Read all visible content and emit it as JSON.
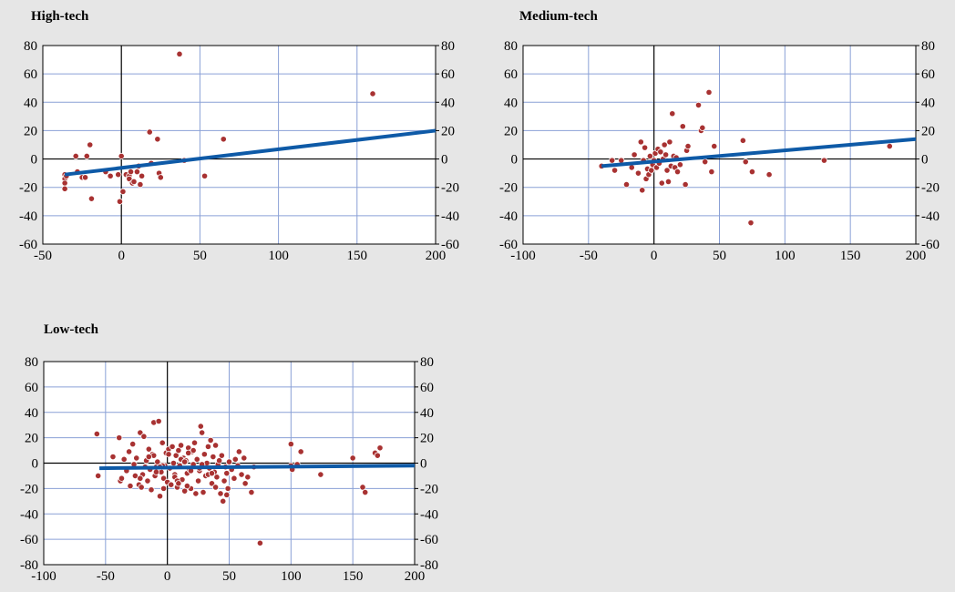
{
  "colors": {
    "background": "#e6e6e6",
    "plot_background": "#ffffff",
    "gridline": "#8aa0d6",
    "axis": "#000000",
    "points": "#a83232",
    "point_edge": "#ffffff",
    "trend": "#0e5aa7"
  },
  "chart_data": [
    {
      "id": "high",
      "type": "scatter",
      "title": "High-tech",
      "xlim": [
        -50,
        200
      ],
      "ylim": [
        -60,
        80
      ],
      "xticks": [
        -50,
        0,
        50,
        100,
        150,
        200
      ],
      "xtick_labels": [
        "-50",
        "0",
        "50",
        "100",
        "150",
        "200"
      ],
      "yticks": [
        -60,
        -40,
        -20,
        0,
        20,
        40,
        60,
        80
      ],
      "ytick_labels": [
        "-60",
        "-40",
        "-20",
        "0",
        "20",
        "40",
        "60",
        "80"
      ],
      "grid": true,
      "trend": {
        "x": [
          -36,
          200
        ],
        "y": [
          -11,
          20
        ]
      },
      "x": [
        -36,
        -36,
        -36,
        -36,
        -35,
        -29,
        -28,
        -25,
        -23,
        -22,
        -20,
        -19,
        -10,
        -7,
        -2,
        -1,
        0,
        1,
        3,
        5,
        5,
        6,
        7,
        8,
        10,
        11,
        12,
        13,
        18,
        19,
        23,
        24,
        25,
        37,
        40,
        53,
        65,
        160
      ],
      "y": [
        -11,
        -14,
        -17,
        -21,
        -12,
        2,
        -9,
        -13,
        -13,
        2,
        10,
        -28,
        -9,
        -12,
        -11,
        -30,
        2,
        -23,
        -11,
        -12,
        -14,
        -9,
        -17,
        -16,
        -9,
        -5,
        -18,
        -12,
        19,
        -3,
        14,
        -10,
        -13,
        74,
        -1,
        -12,
        14,
        46
      ]
    },
    {
      "id": "medium",
      "type": "scatter",
      "title": "Medium-tech",
      "xlim": [
        -100,
        200
      ],
      "ylim": [
        -60,
        80
      ],
      "xticks": [
        -100,
        -50,
        0,
        50,
        100,
        150,
        200
      ],
      "xtick_labels": [
        "-100",
        "-50",
        "0",
        "50",
        "100",
        "150",
        "200"
      ],
      "yticks": [
        -60,
        -40,
        -20,
        0,
        20,
        40,
        60,
        80
      ],
      "ytick_labels": [
        "-60",
        "-40",
        "-20",
        "0",
        "20",
        "40",
        "60",
        "80"
      ],
      "grid": true,
      "trend": {
        "x": [
          -40,
          200
        ],
        "y": [
          -5,
          14
        ]
      },
      "x": [
        -40,
        -32,
        -30,
        -25,
        -21,
        -17,
        -15,
        -12,
        -10,
        -9,
        -8,
        -7,
        -6,
        -5,
        -4,
        -3,
        -2,
        -1,
        0,
        1,
        2,
        3,
        4,
        5,
        6,
        7,
        8,
        9,
        10,
        11,
        12,
        13,
        14,
        15,
        16,
        17,
        18,
        20,
        22,
        24,
        25,
        26,
        34,
        36,
        37,
        39,
        42,
        44,
        46,
        68,
        70,
        74,
        75,
        88,
        130,
        180
      ],
      "y": [
        -5,
        -1,
        -8,
        -1,
        -18,
        -6,
        3,
        -10,
        12,
        -22,
        -1,
        8,
        -14,
        -7,
        -11,
        2,
        -8,
        -4,
        -1,
        4,
        -6,
        7,
        -3,
        5,
        -17,
        0,
        10,
        3,
        -8,
        -16,
        12,
        -5,
        32,
        2,
        -6,
        1,
        -9,
        -4,
        23,
        -18,
        6,
        9,
        38,
        20,
        22,
        -2,
        47,
        -9,
        9,
        13,
        -2,
        -45,
        -9,
        -11,
        -1,
        9
      ]
    },
    {
      "id": "low",
      "type": "scatter",
      "title": "Low-tech",
      "xlim": [
        -100,
        200
      ],
      "ylim": [
        -80,
        80
      ],
      "xticks": [
        -100,
        -50,
        0,
        50,
        100,
        150,
        200
      ],
      "xtick_labels": [
        "-100",
        "-50",
        "0",
        "50",
        "100",
        "150",
        "200"
      ],
      "yticks": [
        -80,
        -60,
        -40,
        -20,
        0,
        20,
        40,
        60,
        80
      ],
      "ytick_labels": [
        "-80",
        "-60",
        "-40",
        "-20",
        "0",
        "20",
        "40",
        "60",
        "80"
      ],
      "grid": true,
      "trend": {
        "x": [
          -55,
          200
        ],
        "y": [
          -4,
          -2
        ]
      },
      "x": [
        -57,
        -56,
        -44,
        -39,
        -38,
        -37,
        -35,
        -33,
        -31,
        -30,
        -28,
        -27,
        -26,
        -25,
        -23,
        -22,
        -21,
        -20,
        -19,
        -18,
        -17,
        -16,
        -15,
        -14,
        -13,
        -12,
        -11,
        -10,
        -9,
        -8,
        -7,
        -6,
        -5,
        -4,
        -3,
        -2,
        -1,
        0,
        1,
        2,
        3,
        4,
        5,
        6,
        7,
        8,
        9,
        10,
        11,
        12,
        13,
        14,
        15,
        16,
        17,
        18,
        19,
        20,
        21,
        22,
        23,
        24,
        25,
        26,
        27,
        28,
        29,
        30,
        31,
        32,
        33,
        34,
        35,
        36,
        37,
        38,
        39,
        40,
        41,
        42,
        43,
        44,
        45,
        46,
        47,
        48,
        49,
        50,
        52,
        54,
        55,
        57,
        58,
        60,
        62,
        63,
        65,
        68,
        70,
        75,
        100,
        100,
        101,
        105,
        108,
        124,
        150,
        158,
        160,
        168,
        170,
        172,
        -9,
        -4,
        1,
        6,
        11,
        16,
        21,
        26,
        -11,
        -3,
        8,
        14,
        19,
        33,
        39,
        -22,
        -15,
        -6,
        9,
        17,
        36,
        28,
        48
      ],
      "y": [
        23,
        -10,
        5,
        20,
        -14,
        -12,
        3,
        -6,
        9,
        -18,
        15,
        -1,
        -10,
        4,
        -17,
        24,
        -19,
        -9,
        21,
        -3,
        2,
        -14,
        11,
        -5,
        -21,
        7,
        32,
        -10,
        -3,
        1,
        33,
        -26,
        -7,
        16,
        -12,
        -2,
        8,
        -15,
        11,
        -4,
        -17,
        13,
        0,
        -9,
        6,
        -19,
        10,
        -2,
        14,
        -13,
        4,
        -22,
        2,
        -8,
        12,
        -5,
        -20,
        9,
        -1,
        16,
        -24,
        3,
        -14,
        -6,
        29,
        24,
        -23,
        7,
        -10,
        0,
        13,
        -4,
        18,
        -16,
        5,
        -7,
        -19,
        -11,
        -1,
        2,
        -24,
        6,
        -30,
        -14,
        -3,
        -8,
        -20,
        1,
        -5,
        -12,
        3,
        -2,
        9,
        -9,
        4,
        -16,
        -11,
        -23,
        -3,
        -63,
        15,
        -2,
        -5,
        -1,
        9,
        -9,
        4,
        -19,
        -23,
        8,
        6,
        12,
        -7,
        -2,
        7,
        -11,
        3,
        -18,
        10,
        -4,
        6,
        -20,
        -14,
        1,
        -6,
        -9,
        14,
        -12,
        5,
        -3,
        -16,
        8,
        -8,
        -1,
        -25
      ]
    }
  ]
}
